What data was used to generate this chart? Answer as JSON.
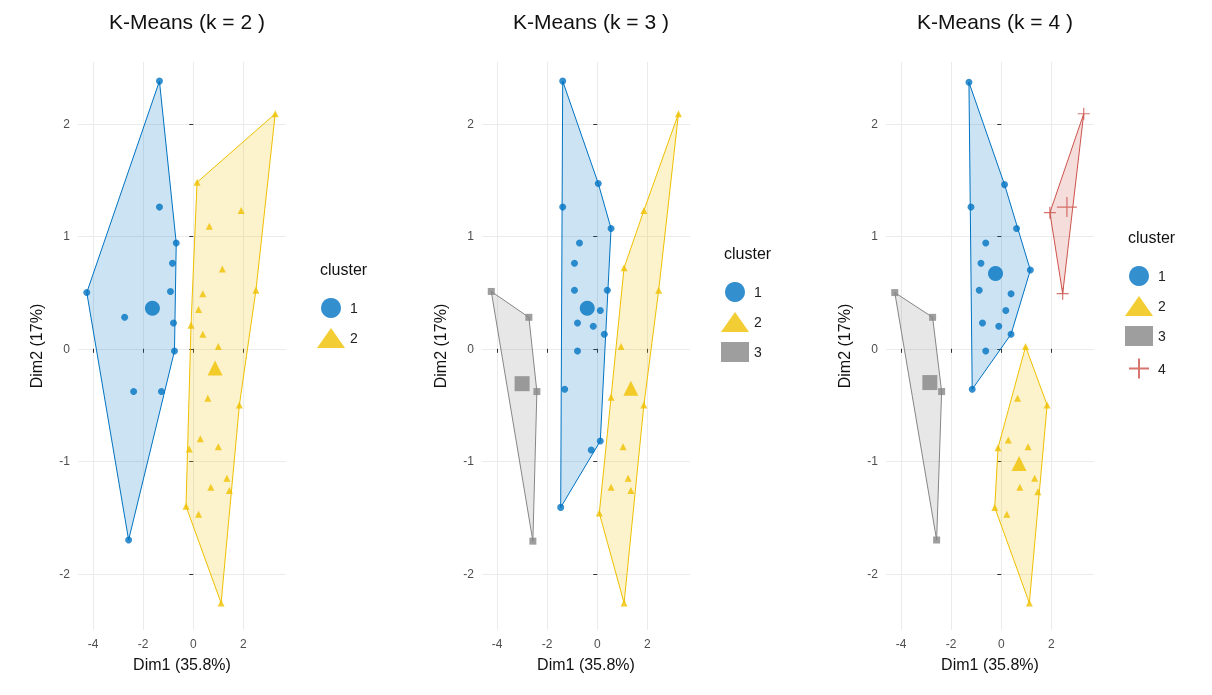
{
  "chart_data": [
    {
      "type": "scatter",
      "title": "K-Means (k = 2 )",
      "xlabel": "Dim1 (35.8%)",
      "ylabel": "Dim2 (17%)",
      "legend_title": "cluster",
      "legend": "right",
      "grid": true,
      "xlim": [
        -4.6,
        3.7
      ],
      "ylim": [
        -2.5,
        2.55
      ],
      "xticks": [
        -4,
        -2,
        0,
        2
      ],
      "yticks": [
        -2,
        -1,
        0,
        1,
        2
      ],
      "series": [
        {
          "name": "1",
          "color": "#0073c2",
          "marker": "circle",
          "x": [
            -1.35,
            -1.35,
            -0.68,
            -0.83,
            -4.25,
            -0.91,
            -2.74,
            -0.79,
            -0.75,
            -1.27,
            -2.38,
            -2.58
          ],
          "values": [
            2.38,
            1.26,
            0.94,
            0.76,
            0.5,
            0.51,
            0.28,
            0.23,
            -0.02,
            -0.38,
            -0.38,
            -1.7
          ]
        },
        {
          "name": "2",
          "color": "#efc000",
          "marker": "triangle",
          "x": [
            3.27,
            0.15,
            1.91,
            0.64,
            1.16,
            0.38,
            2.5,
            0.21,
            -0.09,
            0.38,
            1.0,
            0.58,
            1.84,
            0.28,
            -0.16,
            1.0,
            1.34,
            0.7,
            1.44,
            -0.29,
            0.21,
            1.11
          ],
          "values": [
            2.09,
            1.48,
            1.23,
            1.09,
            0.71,
            0.49,
            0.52,
            0.35,
            0.21,
            0.13,
            0.02,
            -0.44,
            -0.5,
            -0.8,
            -0.89,
            -0.87,
            -1.15,
            -1.23,
            -1.26,
            -1.4,
            -1.47,
            -2.26
          ]
        },
        {
          "type": "area",
          "color": "#0073c2",
          "x": [
            -1.35,
            -0.68,
            -0.75,
            -2.58,
            -4.25
          ],
          "values": [
            2.38,
            0.94,
            -0.02,
            -1.7,
            0.5
          ]
        },
        {
          "type": "area",
          "color": "#efc000",
          "x": [
            3.27,
            2.5,
            1.84,
            1.11,
            -0.29,
            -0.09,
            0.15
          ],
          "values": [
            2.09,
            0.52,
            -0.5,
            -2.26,
            -1.4,
            0.21,
            1.48
          ]
        },
        {
          "color": "#0073c2",
          "marker": "circle",
          "x": [
            -1.63
          ],
          "values": [
            0.36
          ]
        },
        {
          "color": "#efc000",
          "marker": "triangle",
          "x": [
            0.87
          ],
          "values": [
            -0.17
          ]
        }
      ]
    },
    {
      "type": "scatter",
      "title": "K-Means (k = 3 )",
      "xlabel": "Dim1 (35.8%)",
      "ylabel": "Dim2 (17%)",
      "legend_title": "cluster",
      "legend": "right",
      "grid": true,
      "xlim": [
        -4.6,
        3.7
      ],
      "ylim": [
        -2.5,
        2.55
      ],
      "xticks": [
        -4,
        -2,
        0,
        2
      ],
      "yticks": [
        -2,
        -1,
        0,
        1,
        2
      ],
      "series": [
        {
          "name": "1",
          "color": "#0073c2",
          "marker": "circle",
          "x": [
            -1.38,
            0.04,
            -1.38,
            0.55,
            -0.71,
            -0.91,
            -0.91,
            0.4,
            0.12,
            -0.16,
            -0.79,
            0.28,
            -0.79,
            -1.3,
            0.12,
            -0.24,
            -1.46
          ],
          "values": [
            2.38,
            1.47,
            1.26,
            1.07,
            0.94,
            0.76,
            0.52,
            0.52,
            0.34,
            0.2,
            0.23,
            0.13,
            -0.02,
            -0.36,
            -0.82,
            -0.9,
            -1.41
          ]
        },
        {
          "name": "2",
          "color": "#efc000",
          "marker": "triangle",
          "x": [
            3.24,
            1.86,
            1.07,
            2.45,
            0.95,
            0.55,
            1.86,
            1.03,
            1.23,
            0.55,
            1.34,
            0.08,
            1.07
          ],
          "values": [
            2.09,
            1.23,
            0.72,
            0.52,
            0.02,
            -0.43,
            -0.5,
            -0.87,
            -1.15,
            -1.23,
            -1.26,
            -1.46,
            -2.26
          ]
        },
        {
          "name": "3",
          "color": "#868686",
          "marker": "square",
          "x": [
            -4.23,
            -2.73,
            -2.41,
            -2.57
          ],
          "values": [
            0.51,
            0.28,
            -0.38,
            -1.71
          ]
        },
        {
          "type": "area",
          "color": "#0073c2",
          "x": [
            -1.38,
            0.04,
            0.55,
            0.12,
            -1.46
          ],
          "values": [
            2.38,
            1.47,
            1.07,
            -0.82,
            -1.41
          ]
        },
        {
          "type": "area",
          "color": "#efc000",
          "x": [
            3.24,
            2.45,
            1.86,
            1.07,
            0.08,
            0.55,
            1.07,
            1.86
          ],
          "values": [
            2.09,
            0.52,
            -0.5,
            -2.26,
            -1.46,
            -0.43,
            0.72,
            1.23
          ]
        },
        {
          "type": "area",
          "color": "#868686",
          "x": [
            -4.23,
            -2.73,
            -2.41,
            -2.57
          ],
          "values": [
            0.51,
            0.28,
            -0.38,
            -1.71
          ]
        },
        {
          "color": "#0073c2",
          "marker": "circle",
          "x": [
            -0.4
          ],
          "values": [
            0.36
          ]
        },
        {
          "color": "#efc000",
          "marker": "triangle",
          "x": [
            1.34
          ],
          "values": [
            -0.35
          ]
        },
        {
          "color": "#868686",
          "marker": "square",
          "x": [
            -3.0
          ],
          "values": [
            -0.31
          ]
        }
      ]
    },
    {
      "type": "scatter",
      "title": "K-Means (k = 4 )",
      "xlabel": "Dim1 (35.8%)",
      "ylabel": "Dim2 (17%)",
      "legend_title": "cluster",
      "legend": "right",
      "grid": true,
      "xlim": [
        -4.6,
        3.7
      ],
      "ylim": [
        -2.5,
        2.55
      ],
      "xticks": [
        -4,
        -2,
        0,
        2
      ],
      "yticks": [
        -2,
        -1,
        0,
        1,
        2
      ],
      "series": [
        {
          "name": "1",
          "color": "#0073c2",
          "marker": "circle",
          "x": [
            -1.29,
            0.13,
            -1.21,
            0.61,
            -0.62,
            1.16,
            -0.81,
            -0.88,
            0.39,
            0.18,
            -0.75,
            -0.1,
            0.39,
            -0.62,
            -1.16
          ],
          "values": [
            2.37,
            1.46,
            1.26,
            1.07,
            0.94,
            0.7,
            0.76,
            0.52,
            0.49,
            0.34,
            0.23,
            0.2,
            0.13,
            -0.02,
            -0.36
          ]
        },
        {
          "name": "2",
          "color": "#efc000",
          "marker": "triangle",
          "x": [
            0.97,
            0.65,
            1.83,
            0.28,
            -0.13,
            1.07,
            1.33,
            0.74,
            1.46,
            -0.26,
            0.22,
            1.12
          ],
          "values": [
            0.02,
            -0.44,
            -0.5,
            -0.81,
            -0.88,
            -0.87,
            -1.15,
            -1.23,
            -1.27,
            -1.41,
            -1.47,
            -2.26
          ]
        },
        {
          "name": "3",
          "color": "#868686",
          "marker": "square",
          "x": [
            -4.25,
            -2.74,
            -2.38,
            -2.58
          ],
          "values": [
            0.5,
            0.28,
            -0.38,
            -1.7
          ]
        },
        {
          "name": "4",
          "color": "#cd534c",
          "marker": "cross",
          "x": [
            3.29,
            1.94,
            2.45
          ],
          "values": [
            2.09,
            1.21,
            0.49
          ]
        },
        {
          "type": "area",
          "color": "#0073c2",
          "x": [
            -1.29,
            0.13,
            1.16,
            0.39,
            -1.16
          ],
          "values": [
            2.37,
            1.46,
            0.7,
            0.13,
            -0.36
          ]
        },
        {
          "type": "area",
          "color": "#efc000",
          "x": [
            0.97,
            1.83,
            1.12,
            -0.26,
            -0.13
          ],
          "values": [
            0.02,
            -0.5,
            -2.26,
            -1.41,
            -0.88
          ]
        },
        {
          "type": "area",
          "color": "#868686",
          "x": [
            -4.25,
            -2.74,
            -2.38,
            -2.58
          ],
          "values": [
            0.5,
            0.28,
            -0.38,
            -1.7
          ]
        },
        {
          "type": "area",
          "color": "#cd534c",
          "x": [
            3.29,
            2.45,
            1.94
          ],
          "values": [
            2.09,
            0.49,
            1.21
          ]
        },
        {
          "color": "#0073c2",
          "marker": "circle",
          "x": [
            -0.23
          ],
          "values": [
            0.67
          ]
        },
        {
          "color": "#efc000",
          "marker": "triangle",
          "x": [
            0.71
          ],
          "values": [
            -1.02
          ]
        },
        {
          "color": "#868686",
          "marker": "square",
          "x": [
            -2.85
          ],
          "values": [
            -0.3
          ]
        },
        {
          "color": "#cd534c",
          "marker": "cross",
          "x": [
            2.62
          ],
          "values": [
            1.26
          ]
        }
      ]
    }
  ]
}
